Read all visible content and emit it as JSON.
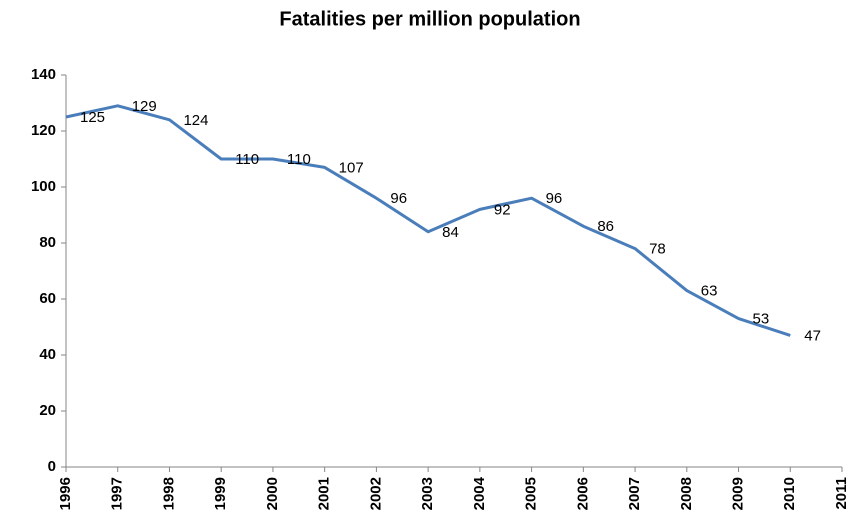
{
  "chart_data": {
    "type": "line",
    "title": "Fatalities per million population",
    "x": [
      1996,
      1997,
      1998,
      1999,
      2000,
      2001,
      2002,
      2003,
      2004,
      2005,
      2006,
      2007,
      2008,
      2009,
      2010
    ],
    "series": [
      {
        "color": "#4a7ebb",
        "values": [
          125,
          129,
          124,
          110,
          110,
          107,
          96,
          84,
          92,
          96,
          86,
          78,
          63,
          53,
          47
        ]
      }
    ],
    "xlim": [
      1996,
      2011
    ],
    "xticks": [
      1996,
      1997,
      1998,
      1999,
      2000,
      2001,
      2002,
      2003,
      2004,
      2005,
      2006,
      2007,
      2008,
      2009,
      2010,
      2011
    ],
    "ylim": [
      0,
      140
    ],
    "yticks": [
      0,
      20,
      40,
      60,
      80,
      100,
      120,
      140
    ],
    "grid": false
  }
}
